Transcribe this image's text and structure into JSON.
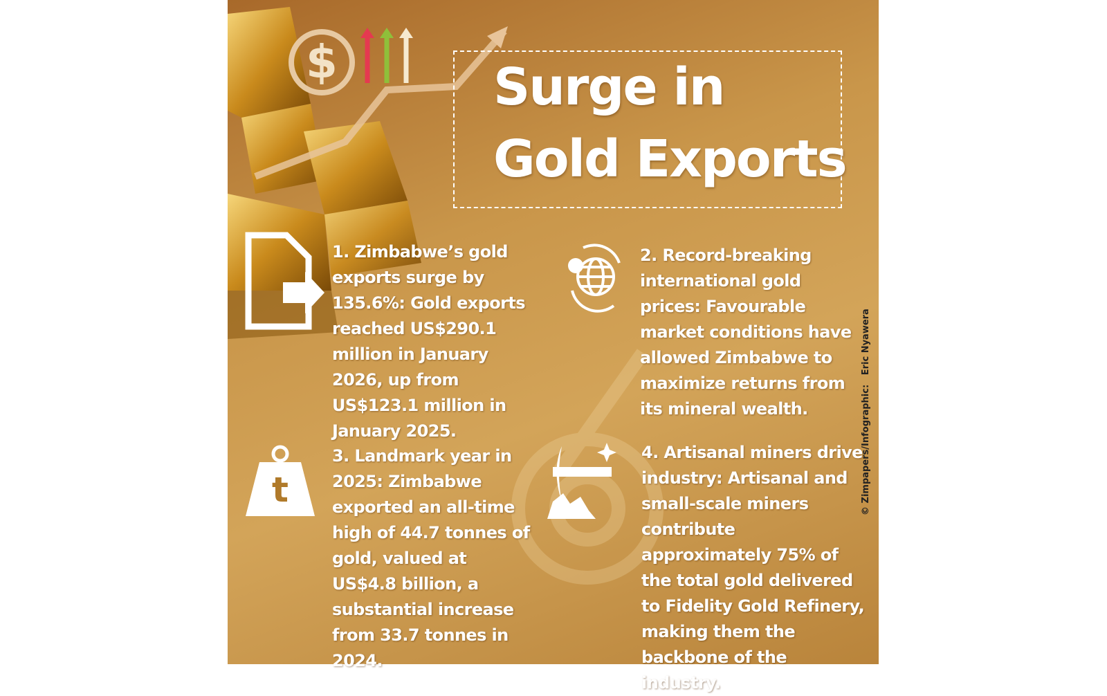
{
  "header": {
    "title": [
      "Surge in",
      "Gold Exports"
    ]
  },
  "items": [
    {
      "text": "1. Zimbabwe’s gold exports surge by 135.6%: Gold exports reached US$290.1 million in January 2026, up from US$123.1 million in January 2025."
    },
    {
      "text": "2. Record-breaking international gold prices: Favourable market conditions have allowed Zimbabwe to maximize returns from its mineral wealth."
    },
    {
      "text": "3. Landmark year in 2025: Zimbabwe exported an all-time high of 44.7 tonnes of gold, valued at US$4.8 billion, a substantial increase from 33.7 tonnes in 2024."
    },
    {
      "text": "4. Artisanal miners drive industry: Artisanal and small-scale miners contribute approximately 75% of the total gold delivered to Fidelity Gold Refinery, making them the backbone of the industry."
    }
  ],
  "credit": "© Zimpapers/Infographic:   Eric Nyawera"
}
